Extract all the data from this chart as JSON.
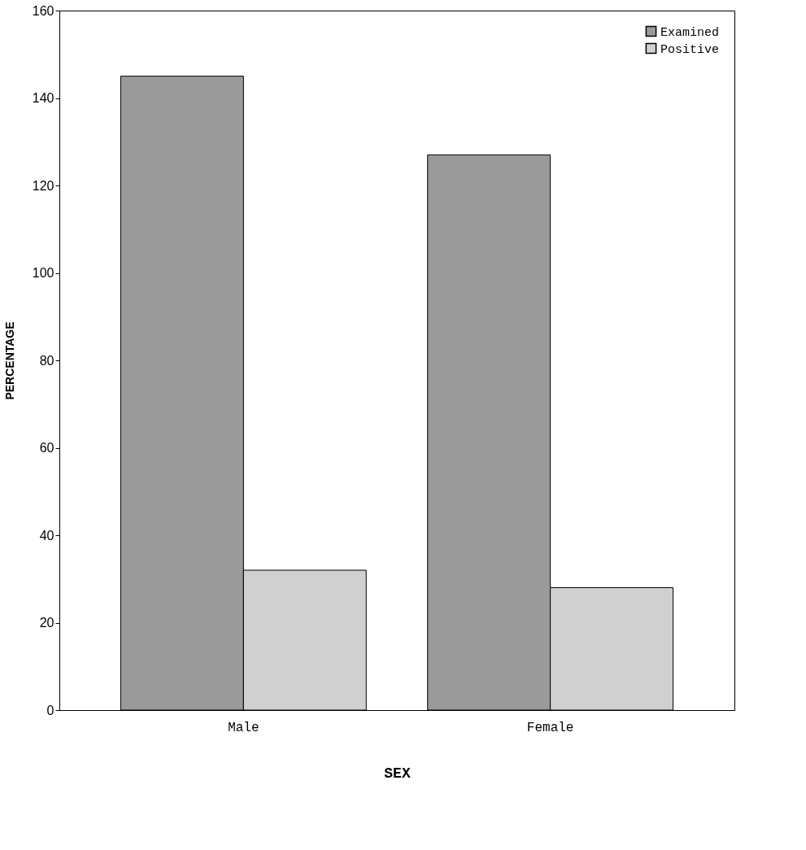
{
  "chart_data": {
    "type": "bar",
    "xlabel": "SEX",
    "ylabel": "PERCENTAGE",
    "categories": [
      "Male",
      "Female"
    ],
    "series": [
      {
        "name": "Examined",
        "color": "#9a9a9a",
        "values": [
          145,
          127
        ]
      },
      {
        "name": "Positive",
        "color": "#d0d0d0",
        "values": [
          32,
          28
        ]
      }
    ],
    "ylim": [
      0,
      160
    ],
    "yticks": [
      0,
      20,
      40,
      60,
      80,
      100,
      120,
      140,
      160
    ],
    "grid": false,
    "legend": "top right"
  }
}
